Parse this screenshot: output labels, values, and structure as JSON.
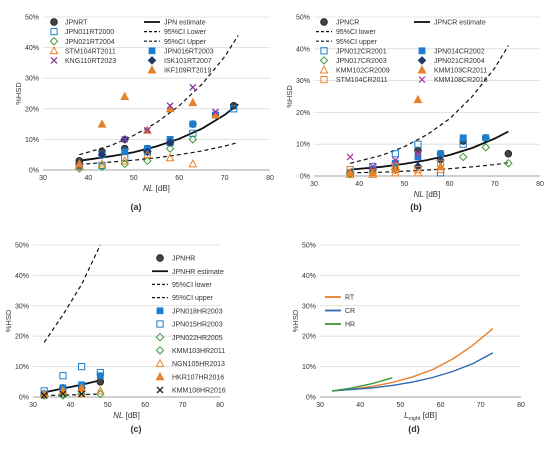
{
  "panels": [
    {
      "id": "a",
      "caption": "(a)"
    },
    {
      "id": "b",
      "caption": "(b)"
    },
    {
      "id": "c",
      "caption": "(c)"
    },
    {
      "id": "d",
      "caption": "(d)"
    }
  ],
  "chart_data": [
    {
      "type": "scatter",
      "panel": "a",
      "xlabel": "NL [dB]",
      "ylabel": "%HSD",
      "xlim": [
        30,
        80
      ],
      "ylim": [
        0,
        50
      ],
      "xticks": [
        30,
        40,
        50,
        60,
        70,
        80
      ],
      "yticks": [
        0,
        10,
        20,
        30,
        40,
        50
      ],
      "legend": [
        "JPNRT",
        "JPN estimate",
        "95%CI Lower",
        "95%CI Upper",
        "JPN011RT2000",
        "JPN016RT2003",
        "JPN021RT2004",
        "ISK101RT2007",
        "STM104RT2011",
        "IKF109RT2019",
        "KNG110RT2023"
      ],
      "lines": [
        {
          "name": "JPN estimate",
          "style": "solid",
          "x": [
            38,
            45,
            50,
            55,
            60,
            65,
            70,
            73
          ],
          "y": [
            3,
            4.5,
            5.8,
            7.7,
            10.2,
            13.5,
            18,
            21.5
          ]
        },
        {
          "name": "95%CI Lower",
          "style": "dashed",
          "x": [
            38,
            45,
            50,
            55,
            60,
            65,
            70,
            73
          ],
          "y": [
            1.8,
            2.6,
            3.2,
            4,
            5,
            6.2,
            7.8,
            9
          ]
        },
        {
          "name": "95%CI Upper",
          "style": "dashed",
          "x": [
            38,
            45,
            50,
            55,
            60,
            65,
            70,
            73
          ],
          "y": [
            5,
            8,
            11.3,
            15.5,
            21,
            28,
            37,
            44
          ]
        }
      ],
      "series": [
        {
          "name": "JPNRT",
          "marker": "circle-filled",
          "color": "#555555",
          "x": [
            38,
            43,
            48,
            53,
            58,
            63,
            68,
            72
          ],
          "y": [
            3,
            6,
            7,
            7,
            9,
            15,
            18,
            21
          ]
        },
        {
          "name": "JPN011RT2000",
          "marker": "square-open",
          "color": "#1a7fd0",
          "x": [
            38,
            43,
            48,
            53,
            58,
            63,
            72
          ],
          "y": [
            1,
            1.5,
            4,
            6,
            9,
            12,
            20
          ]
        },
        {
          "name": "JPN016RT2003",
          "marker": "square-filled",
          "color": "#1a7fd0",
          "x": [
            38,
            43,
            48,
            53,
            58,
            63,
            68
          ],
          "y": [
            1,
            5,
            6,
            7,
            10,
            15,
            18
          ]
        },
        {
          "name": "JPN021RT2004",
          "marker": "diamond-open",
          "color": "#3a9a3a",
          "x": [
            38,
            43,
            48,
            53,
            58,
            63
          ],
          "y": [
            0.5,
            1,
            2,
            3,
            7,
            10
          ]
        },
        {
          "name": "ISK101RT2007",
          "marker": "diamond-filled",
          "color": "#1f3a6a",
          "x": [
            38,
            43,
            48,
            53,
            58
          ],
          "y": [
            2,
            5,
            10,
            6,
            9
          ]
        },
        {
          "name": "STM104RT2011",
          "marker": "triangle-open",
          "color": "#e8822a",
          "x": [
            38,
            43,
            48,
            53,
            58,
            63
          ],
          "y": [
            1,
            2,
            3,
            5,
            4,
            2
          ]
        },
        {
          "name": "IKF109RT2019",
          "marker": "triangle-filled",
          "color": "#e8822a",
          "x": [
            38,
            43,
            48,
            53,
            58,
            63,
            68
          ],
          "y": [
            2,
            15,
            24,
            13,
            20,
            22,
            18
          ]
        },
        {
          "name": "KNG110RT2023",
          "marker": "x",
          "color": "#8a3aa0",
          "x": [
            48,
            53,
            58,
            63,
            68
          ],
          "y": [
            10,
            13,
            21,
            27,
            19
          ]
        }
      ]
    },
    {
      "type": "scatter",
      "panel": "b",
      "xlabel": "NL [dB]",
      "ylabel": "%HSD",
      "xlim": [
        30,
        80
      ],
      "ylim": [
        0,
        50
      ],
      "xticks": [
        30,
        40,
        50,
        60,
        70,
        80
      ],
      "yticks": [
        0,
        10,
        20,
        30,
        40,
        50
      ],
      "legend": [
        "JPNCR",
        "JPNCR estimate",
        "95%CI lower",
        "95%CI upper",
        "JPN012CR2001",
        "JPN014CR2002",
        "JPN017CR2003",
        "JPN021CR2004",
        "KMM102CR2009",
        "KMM103CR2011",
        "STM104CR2011",
        "KMM108CR2016"
      ],
      "lines": [
        {
          "name": "JPNCR estimate",
          "style": "solid",
          "x": [
            38,
            45,
            50,
            55,
            60,
            65,
            70,
            73
          ],
          "y": [
            2,
            2.9,
            3.8,
            5,
            6.6,
            8.8,
            11.8,
            14
          ]
        },
        {
          "name": "95%CI lower",
          "style": "dashed",
          "x": [
            38,
            45,
            50,
            55,
            60,
            65,
            70,
            73
          ],
          "y": [
            1,
            1.2,
            1.5,
            1.9,
            2.3,
            2.9,
            3.6,
            4.2
          ]
        },
        {
          "name": "95%CI upper",
          "style": "dashed",
          "x": [
            38,
            45,
            50,
            55,
            60,
            65,
            70,
            73
          ],
          "y": [
            4,
            6.5,
            9.2,
            13,
            18,
            25,
            34,
            41
          ]
        }
      ],
      "series": [
        {
          "name": "JPNCR",
          "marker": "circle-filled",
          "color": "#555555",
          "x": [
            38,
            43,
            48,
            53,
            58,
            63,
            68,
            73
          ],
          "y": [
            1,
            2,
            4,
            8,
            7,
            11,
            12,
            7
          ]
        },
        {
          "name": "JPN012CR2001",
          "marker": "square-open",
          "color": "#1a7fd0",
          "x": [
            38,
            43,
            48,
            53,
            58,
            63
          ],
          "y": [
            2,
            3,
            7,
            10,
            1,
            10
          ]
        },
        {
          "name": "JPN014CR2002",
          "marker": "square-filled",
          "color": "#1a7fd0",
          "x": [
            38,
            43,
            48,
            53,
            58,
            63,
            68
          ],
          "y": [
            1,
            2,
            4,
            6,
            7,
            12,
            12
          ]
        },
        {
          "name": "JPN017CR2003",
          "marker": "diamond-open",
          "color": "#3a9a3a",
          "x": [
            38,
            43,
            48,
            53,
            58,
            63,
            68,
            73
          ],
          "y": [
            0.5,
            1,
            2,
            3,
            5,
            6,
            9,
            4
          ]
        },
        {
          "name": "JPN021CR2004",
          "marker": "diamond-filled",
          "color": "#1f3a6a",
          "x": [
            38,
            43,
            48,
            53,
            58
          ],
          "y": [
            1,
            2,
            2,
            3,
            5
          ]
        },
        {
          "name": "KMM102CR2009",
          "marker": "triangle-open",
          "color": "#e8822a",
          "x": [
            38,
            43,
            48,
            53,
            58
          ],
          "y": [
            0.5,
            0.5,
            1,
            1,
            2
          ]
        },
        {
          "name": "KMM103CR2011",
          "marker": "triangle-filled",
          "color": "#e8822a",
          "x": [
            38,
            43,
            48,
            53,
            58
          ],
          "y": [
            1,
            1,
            2,
            24,
            3
          ]
        },
        {
          "name": "STM104CR2011",
          "marker": "square-open",
          "color": "#e8822a",
          "x": [
            38,
            43,
            48,
            53,
            58
          ],
          "y": [
            2,
            1,
            3,
            2,
            4
          ]
        },
        {
          "name": "KMM108CR2016",
          "marker": "x",
          "color": "#b03aa0",
          "x": [
            38,
            43,
            48,
            53
          ],
          "y": [
            6,
            3,
            5,
            7
          ]
        }
      ]
    },
    {
      "type": "scatter",
      "panel": "c",
      "xlabel": "NL [dB]",
      "ylabel": "%HSD",
      "xlim": [
        30,
        80
      ],
      "ylim": [
        0,
        50
      ],
      "xticks": [
        30,
        40,
        50,
        60,
        70,
        80
      ],
      "yticks": [
        0,
        10,
        20,
        30,
        40,
        50
      ],
      "legend": [
        "JPNHR",
        "JPNHR estimate",
        "95%CI lower",
        "95%CI upper",
        "JPN018HR2003",
        "JPN015HR2003",
        "JPN022HR2005",
        "KMM103HR2011",
        "NGN105HR2013",
        "HKR107HR2016",
        "KMM108HR2016"
      ],
      "lines": [
        {
          "name": "JPNHR estimate",
          "style": "solid",
          "x": [
            33,
            38,
            43,
            48
          ],
          "y": [
            1.5,
            2.8,
            4,
            5.5
          ]
        },
        {
          "name": "95%CI lower",
          "style": "dashed",
          "x": [
            33,
            38,
            43,
            48
          ],
          "y": [
            0.5,
            0.6,
            0.8,
            1
          ]
        },
        {
          "name": "95%CI upper",
          "style": "dashed",
          "x": [
            33,
            38,
            43,
            48
          ],
          "y": [
            18,
            27,
            37,
            50
          ]
        }
      ],
      "series": [
        {
          "name": "JPNHR",
          "marker": "circle-filled",
          "color": "#555555",
          "x": [
            33,
            38,
            43,
            48
          ],
          "y": [
            1,
            3,
            3,
            5
          ]
        },
        {
          "name": "JPN018HR2003",
          "marker": "square-filled",
          "color": "#1a7fd0",
          "x": [
            33,
            38,
            43,
            48
          ],
          "y": [
            1,
            3,
            4,
            7
          ]
        },
        {
          "name": "JPN015HR2003",
          "marker": "square-open",
          "color": "#1a7fd0",
          "x": [
            33,
            38,
            43,
            48
          ],
          "y": [
            2,
            7,
            10,
            8
          ]
        },
        {
          "name": "JPN022HR2005",
          "marker": "diamond-open",
          "color": "#3a9a3a",
          "x": [
            33,
            38,
            43,
            48
          ],
          "y": [
            0.5,
            1,
            2,
            1
          ]
        },
        {
          "name": "KMM103HR2011",
          "marker": "diamond-open",
          "color": "#3a9a3a",
          "x": [
            33,
            38,
            43
          ],
          "y": [
            0.5,
            0.5,
            1
          ]
        },
        {
          "name": "NGN105HR2013",
          "marker": "triangle-open",
          "color": "#e8822a",
          "x": [
            38,
            43,
            48
          ],
          "y": [
            2,
            1,
            2
          ]
        },
        {
          "name": "HKR107HR2016",
          "marker": "triangle-filled",
          "color": "#e8822a",
          "x": [
            33,
            38,
            43
          ],
          "y": [
            1,
            2,
            3
          ]
        },
        {
          "name": "KMM108HR2016",
          "marker": "x",
          "color": "#222222",
          "x": [
            33,
            38,
            43
          ],
          "y": [
            0.5,
            1,
            1
          ]
        }
      ]
    },
    {
      "type": "line",
      "panel": "d",
      "xlabel": "L",
      "xlabel_sub": "night",
      "xlabel_unit": " [dB]",
      "ylabel": "%HSD",
      "xlim": [
        30,
        80
      ],
      "ylim": [
        0,
        50
      ],
      "xticks": [
        30,
        40,
        50,
        60,
        70,
        80
      ],
      "yticks": [
        0,
        10,
        20,
        30,
        40,
        50
      ],
      "legend": [
        "RT",
        "CR",
        "HR"
      ],
      "series": [
        {
          "name": "RT",
          "color": "#e8822a",
          "x": [
            33,
            38,
            43,
            48,
            53,
            58,
            63,
            68,
            73
          ],
          "y": [
            2,
            2.6,
            3.5,
            4.8,
            6.6,
            9,
            12.5,
            17,
            22.5
          ]
        },
        {
          "name": "CR",
          "color": "#2a6ab0",
          "x": [
            33,
            38,
            43,
            48,
            53,
            58,
            63,
            68,
            73
          ],
          "y": [
            2,
            2.5,
            3,
            3.8,
            4.9,
            6.4,
            8.4,
            11,
            14.5
          ]
        },
        {
          "name": "HR",
          "color": "#3a9a3a",
          "x": [
            33,
            38,
            43,
            48
          ],
          "y": [
            2,
            3,
            4.4,
            6.3
          ]
        }
      ]
    }
  ]
}
